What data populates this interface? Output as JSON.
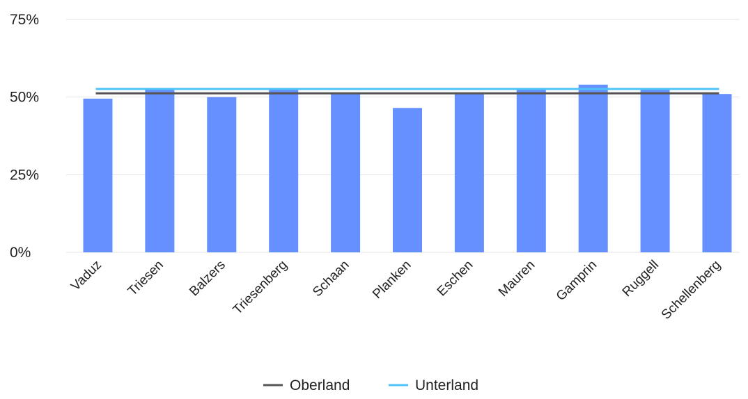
{
  "chart_data": {
    "type": "bar",
    "categories": [
      "Vaduz",
      "Triesen",
      "Balzers",
      "Triesenberg",
      "Schaan",
      "Planken",
      "Eschen",
      "Mauren",
      "Gamprin",
      "Ruggell",
      "Schellenberg"
    ],
    "values": [
      49.5,
      52.5,
      50.0,
      52.5,
      51.5,
      46.5,
      51.5,
      52.5,
      54.0,
      52.5,
      51.0
    ],
    "ylim": [
      0,
      75
    ],
    "yticks": [
      0,
      25,
      50,
      75
    ],
    "ytick_labels": [
      "0%",
      "25%",
      "50%",
      "75%"
    ],
    "grid": true,
    "bar_color": "#6690FF",
    "reference_lines": [
      {
        "name": "Oberland",
        "value": 51.2,
        "color": "#555555"
      },
      {
        "name": "Unterland",
        "value": 52.6,
        "color": "#4FC3F7"
      }
    ],
    "legend_position": "bottom"
  }
}
